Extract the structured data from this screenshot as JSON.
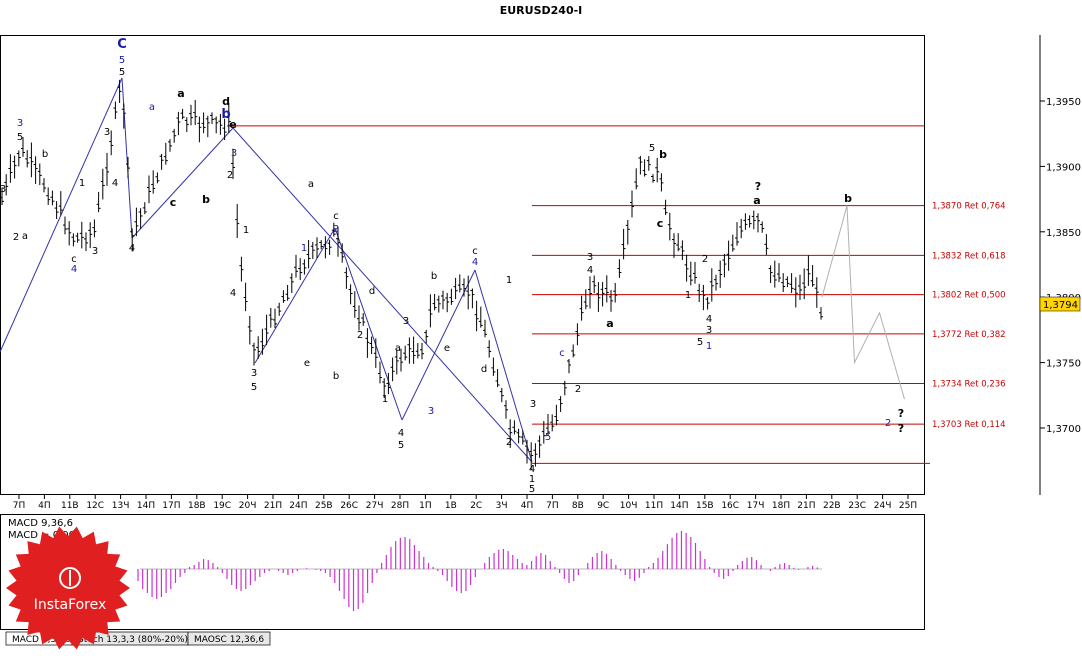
{
  "window": {
    "title": "EURUSD240-I"
  },
  "chart_data": {
    "type": "candlestick-wave-analysis",
    "title": "EURUSD240-I",
    "symbol": "EURUSD",
    "timeframe": "H4",
    "current_price": 1.3794,
    "current_price_label": "1,3794",
    "y_ticks": [
      {
        "value": 1.395,
        "label": "1,3950"
      },
      {
        "value": 1.39,
        "label": "1,3900"
      },
      {
        "value": 1.385,
        "label": "1,3850"
      },
      {
        "value": 1.38,
        "label": "1,3800"
      },
      {
        "value": 1.375,
        "label": "1,3750"
      },
      {
        "value": 1.37,
        "label": "1,3700"
      }
    ],
    "x_ticks": [
      "7П",
      "4П",
      "11В",
      "12С",
      "13Ч",
      "14П",
      "17П",
      "18В",
      "19С",
      "20Ч",
      "21П",
      "24П",
      "25В",
      "26С",
      "27Ч",
      "28П",
      "1П",
      "1В",
      "2С",
      "3Ч",
      "4П",
      "7П",
      "8В",
      "9С",
      "10Ч",
      "11П",
      "14П",
      "15В",
      "16С",
      "17Ч",
      "18П",
      "21П",
      "22В",
      "23С",
      "24Ч",
      "25П"
    ],
    "fib_levels": [
      {
        "value": 1.387,
        "label": "1,3870 Ret 0,764"
      },
      {
        "value": 1.3832,
        "label": "1,3832 Ret 0,618"
      },
      {
        "value": 1.3802,
        "label": "1,3802 Ret 0,500"
      },
      {
        "value": 1.3772,
        "label": "1,3772 Ret 0,382"
      },
      {
        "value": 1.3734,
        "label": "1,3734 Ret 0,236"
      },
      {
        "value": 1.3703,
        "label": "1,3703 Ret 0,114"
      }
    ],
    "swing_levels": [
      1.3931,
      1.3673
    ],
    "forecast_path": [
      {
        "bar": 0.0,
        "price": 1.38
      },
      {
        "bar": 2.0,
        "price": 1.387
      },
      {
        "bar": 2.6,
        "price": 1.375
      },
      {
        "bar": 4.6,
        "price": 1.3788
      },
      {
        "bar": 6.6,
        "price": 1.3722
      }
    ],
    "wave_labels": [
      {
        "t": "C",
        "c": "blue-bold"
      },
      {
        "t": "5",
        "c": "blue"
      },
      {
        "t": "5",
        "c": "black"
      },
      {
        "t": "3",
        "c": "blue"
      },
      {
        "t": "5",
        "c": "black"
      },
      {
        "t": "3",
        "c": "black"
      },
      {
        "t": "b",
        "c": "black"
      },
      {
        "t": "1",
        "c": "black"
      },
      {
        "t": "3",
        "c": "black"
      },
      {
        "t": "4",
        "c": "black"
      },
      {
        "t": "a",
        "c": "black"
      },
      {
        "t": "c",
        "c": "black"
      },
      {
        "t": "4",
        "c": "blue"
      },
      {
        "t": "2",
        "c": "black"
      },
      {
        "t": "3",
        "c": "black"
      },
      {
        "t": "4",
        "c": "black"
      },
      {
        "t": "a",
        "c": "blue"
      },
      {
        "t": "a",
        "c": "bold"
      },
      {
        "t": "c",
        "c": "bold"
      },
      {
        "t": "b",
        "c": "bold"
      },
      {
        "t": "d",
        "c": "bold"
      },
      {
        "t": "b",
        "c": "blue-bold"
      },
      {
        "t": "e",
        "c": "bold"
      },
      {
        "t": "2",
        "c": "black"
      },
      {
        "t": "1",
        "c": "black"
      },
      {
        "t": "4",
        "c": "black"
      },
      {
        "t": "3",
        "c": "black"
      },
      {
        "t": "5",
        "c": "black"
      },
      {
        "t": "1",
        "c": "blue"
      },
      {
        "t": "a",
        "c": "black"
      },
      {
        "t": "c",
        "c": "black"
      },
      {
        "t": "2",
        "c": "blue"
      },
      {
        "t": "e",
        "c": "black"
      },
      {
        "t": "b",
        "c": "black"
      },
      {
        "t": "d",
        "c": "black"
      },
      {
        "t": "2",
        "c": "black"
      },
      {
        "t": "1",
        "c": "black"
      },
      {
        "t": "3",
        "c": "black"
      },
      {
        "t": "a",
        "c": "black"
      },
      {
        "t": "4",
        "c": "black"
      },
      {
        "t": "5",
        "c": "black"
      },
      {
        "t": "3",
        "c": "blue"
      },
      {
        "t": "b",
        "c": "black"
      },
      {
        "t": "c",
        "c": "black"
      },
      {
        "t": "4",
        "c": "blue"
      },
      {
        "t": "e",
        "c": "black"
      },
      {
        "t": "d",
        "c": "black"
      },
      {
        "t": "1",
        "c": "black"
      },
      {
        "t": "2",
        "c": "black"
      },
      {
        "t": "3",
        "c": "black"
      },
      {
        "t": "4",
        "c": "black"
      },
      {
        "t": "1",
        "c": "black"
      },
      {
        "t": "5",
        "c": "black"
      },
      {
        "t": "5",
        "c": "blue"
      },
      {
        "t": "c",
        "c": "blue"
      },
      {
        "t": "2",
        "c": "black"
      },
      {
        "t": "3",
        "c": "black"
      },
      {
        "t": "4",
        "c": "black"
      },
      {
        "t": "a",
        "c": "bold"
      },
      {
        "t": "5",
        "c": "black"
      },
      {
        "t": "b",
        "c": "bold"
      },
      {
        "t": "c",
        "c": "bold"
      },
      {
        "t": "2",
        "c": "black"
      },
      {
        "t": "1",
        "c": "black"
      },
      {
        "t": "4",
        "c": "black"
      },
      {
        "t": "3",
        "c": "black"
      },
      {
        "t": "5",
        "c": "black"
      },
      {
        "t": "1",
        "c": "blue"
      },
      {
        "t": "?",
        "c": "bold"
      },
      {
        "t": "a",
        "c": "bold"
      },
      {
        "t": "b",
        "c": "bold"
      },
      {
        "t": "2",
        "c": "blue"
      },
      {
        "t": "?",
        "c": "bold"
      },
      {
        "t": "?",
        "c": "bold"
      },
      {
        "t": "3",
        "c": "blue"
      },
      {
        "t": "c",
        "c": "bold"
      },
      {
        "t": "2",
        "c": "black"
      }
    ],
    "indicator": {
      "line1": "MACD 9,36,6",
      "line2": "MACD = 0,00",
      "histogram": [
        -0.3,
        -0.5,
        -0.6,
        -0.7,
        -0.75,
        -0.7,
        -0.6,
        -0.5,
        -0.35,
        -0.2,
        -0.1,
        0.05,
        0.1,
        0.18,
        0.25,
        0.22,
        0.15,
        0.05,
        -0.1,
        -0.25,
        -0.4,
        -0.5,
        -0.55,
        -0.5,
        -0.4,
        -0.3,
        -0.2,
        -0.1,
        -0.05,
        0.0,
        -0.05,
        -0.1,
        -0.15,
        -0.1,
        -0.05,
        0.0,
        0.02,
        0.0,
        -0.02,
        -0.05,
        -0.1,
        -0.2,
        -0.35,
        -0.55,
        -0.75,
        -0.95,
        -1.05,
        -1.0,
        -0.85,
        -0.6,
        -0.35,
        -0.1,
        0.15,
        0.35,
        0.55,
        0.7,
        0.78,
        0.8,
        0.75,
        0.6,
        0.45,
        0.3,
        0.15,
        0.05,
        -0.05,
        -0.15,
        -0.3,
        -0.45,
        -0.55,
        -0.6,
        -0.55,
        -0.4,
        -0.2,
        0.0,
        0.15,
        0.3,
        0.4,
        0.48,
        0.5,
        0.45,
        0.35,
        0.25,
        0.15,
        0.1,
        0.2,
        0.32,
        0.4,
        0.35,
        0.2,
        0.05,
        -0.1,
        -0.25,
        -0.35,
        -0.3,
        -0.15,
        0.0,
        0.15,
        0.3,
        0.4,
        0.45,
        0.38,
        0.25,
        0.1,
        -0.05,
        -0.15,
        -0.25,
        -0.3,
        -0.22,
        -0.1,
        0.05,
        0.15,
        0.28,
        0.45,
        0.62,
        0.78,
        0.9,
        0.95,
        0.9,
        0.8,
        0.65,
        0.45,
        0.25,
        0.05,
        -0.1,
        -0.2,
        -0.25,
        -0.18,
        -0.05,
        0.1,
        0.2,
        0.28,
        0.3,
        0.22,
        0.1,
        0.0,
        -0.05,
        0.05,
        0.12,
        0.15,
        0.1,
        0.03,
        -0.02,
        0.0,
        0.05,
        0.08,
        0.04
      ]
    },
    "tabs": [
      "MACD 9,36,6",
      "Stoch 13,3,3 (80%-20%)",
      "MAOSC 12,36,6"
    ]
  },
  "branding": {
    "logo_text": "InstaForex",
    "accent_color": "#e02020"
  },
  "colors": {
    "fib_line": "#cc0000",
    "trend_line": "#3333aa",
    "forecast_line": "#b0b0b0",
    "histogram": "#cc33cc",
    "candle": "#000000"
  }
}
